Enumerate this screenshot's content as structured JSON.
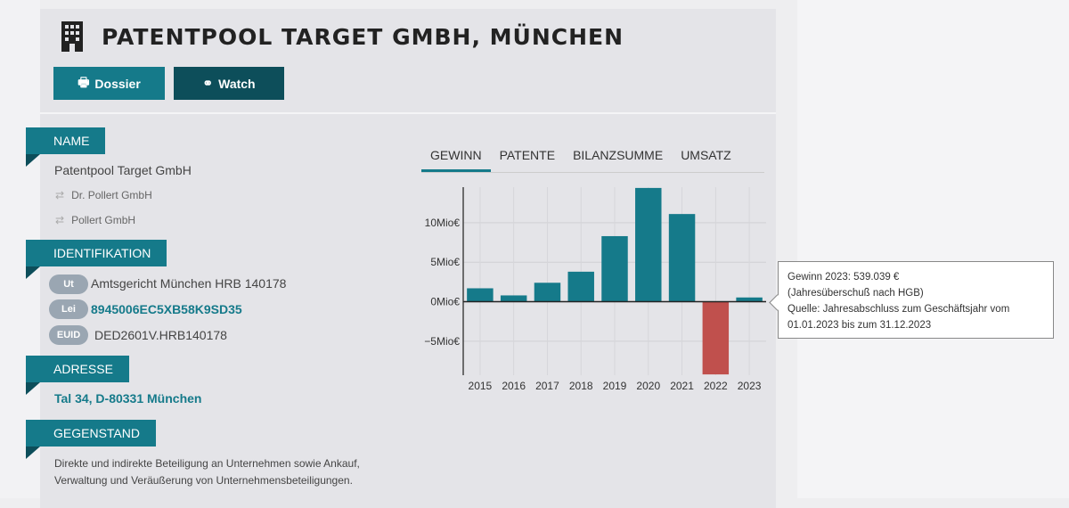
{
  "header": {
    "title": "PATENTPOOL TARGET GMBH, MÜNCHEN",
    "dossier_label": "Dossier",
    "watch_label": "Watch"
  },
  "sections": {
    "name": {
      "label": "NAME",
      "value": "Patentpool Target GmbH",
      "aliases": [
        "Dr. Pollert GmbH",
        "Pollert GmbH"
      ]
    },
    "identifikation": {
      "label": "IDENTIFIKATION",
      "items": [
        {
          "tag": "Ut",
          "value": "Amtsgericht München HRB 140178"
        },
        {
          "tag": "Lei",
          "value": "8945006EC5XB58K9SD35"
        },
        {
          "tag": "EUID",
          "value": "DED2601V.HRB140178"
        }
      ]
    },
    "adresse": {
      "label": "ADRESSE",
      "value": "Tal 34, D-80331 München"
    },
    "gegenstand": {
      "label": "GEGENSTAND",
      "line1": "Direkte und indirekte Beteiligung an Unternehmen sowie Ankauf,",
      "line2": "Verwaltung und Veräußerung von Unternehmensbeteiligungen."
    }
  },
  "tabs": [
    "GEWINN",
    "PATENTE",
    "BILANZSUMME",
    "UMSATZ"
  ],
  "tooltip": {
    "line1": "Gewinn 2023:  539.039 €",
    "line2": "(Jahresüberschuß nach HGB)",
    "line3": "Quelle: Jahresabschluss zum Geschäftsjahr vom",
    "line4": "01.01.2023 bis zum 31.12.2023"
  },
  "colors": {
    "accent": "#157a8a",
    "dark": "#0d4e5a",
    "negative": "#c0504d"
  },
  "chart_data": {
    "type": "bar",
    "title": "GEWINN",
    "categories": [
      "2015",
      "2016",
      "2017",
      "2018",
      "2019",
      "2020",
      "2021",
      "2022",
      "2023"
    ],
    "values": [
      1.7,
      0.8,
      2.4,
      3.8,
      8.3,
      14.4,
      11.1,
      -9.2,
      0.539
    ],
    "unit": "Mio€",
    "yticks": [
      {
        "v": -5,
        "label": "−5Mio€"
      },
      {
        "v": 0,
        "label": "0Mio€"
      },
      {
        "v": 5,
        "label": "5Mio€"
      },
      {
        "v": 10,
        "label": "10Mio€"
      }
    ],
    "ylim": [
      -9.3,
      14.5
    ],
    "grid": true
  }
}
